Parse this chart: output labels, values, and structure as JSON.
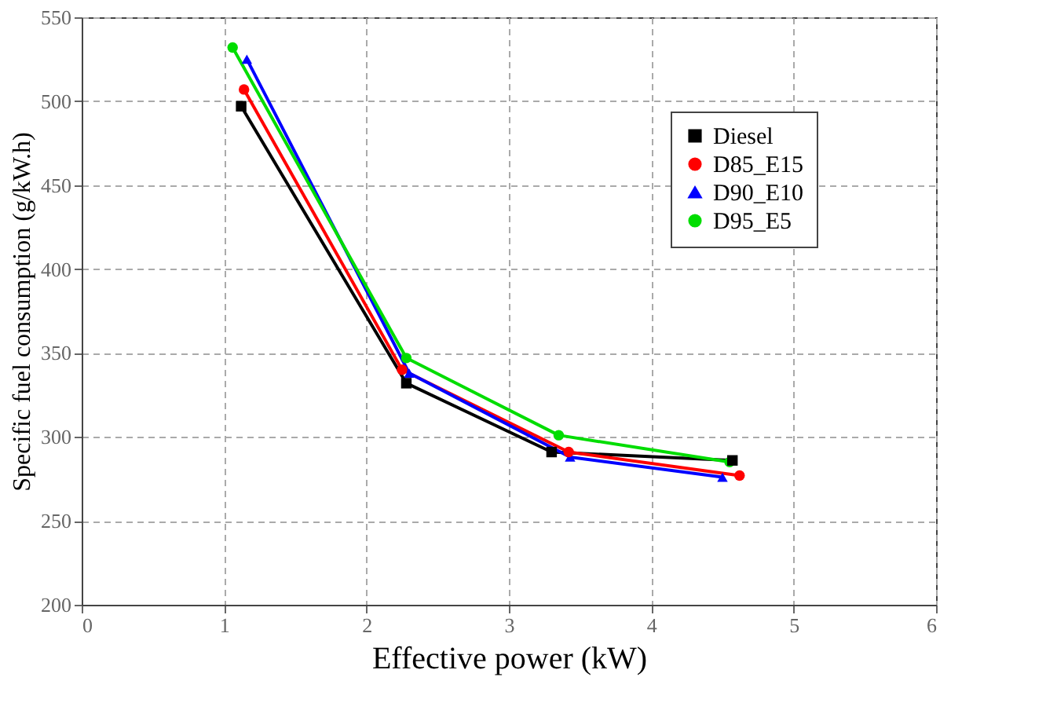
{
  "chart_data": {
    "type": "line",
    "xlabel": "Effective power (kW)",
    "ylabel": "Specific fuel consumption (g/kW.h)",
    "xlim": [
      0,
      6
    ],
    "xticks": [
      0,
      1,
      2,
      3,
      4,
      5,
      6
    ],
    "ylim": [
      200,
      550
    ],
    "yticks": [
      200,
      250,
      300,
      350,
      400,
      450,
      500,
      550
    ],
    "grid": true,
    "legend": "top right",
    "line_style": "solid",
    "series": [
      {
        "name": "Diesel",
        "color": "#000000",
        "marker": "square",
        "x": [
          1.12,
          2.28,
          3.3,
          4.57
        ],
        "values": [
          497,
          332,
          291,
          286
        ]
      },
      {
        "name": "D85_E15",
        "color": "#ff0000",
        "marker": "circle",
        "x": [
          1.14,
          2.25,
          3.42,
          4.62
        ],
        "values": [
          507,
          340,
          291,
          277
        ]
      },
      {
        "name": "D90_E10",
        "color": "#0000ff",
        "marker": "triangle",
        "x": [
          1.16,
          2.3,
          3.43,
          4.5
        ],
        "values": [
          525,
          338,
          288,
          276
        ]
      },
      {
        "name": "D95_E5",
        "color": "#00dd00",
        "marker": "circle",
        "x": [
          1.06,
          2.28,
          3.35,
          4.55
        ],
        "values": [
          532,
          347,
          301,
          285
        ]
      }
    ]
  }
}
